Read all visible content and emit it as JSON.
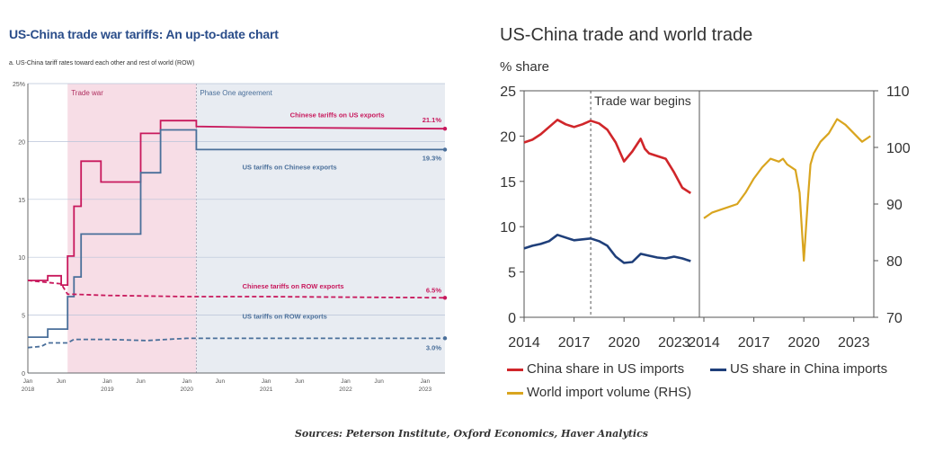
{
  "left": {
    "title": "US-China trade war tariffs: An up-to-date chart",
    "subtitle": "a. US-China tariff rates toward each other and rest of world (ROW)"
  },
  "right": {
    "title": "US-China trade and world trade",
    "ylabel": "% share"
  },
  "source": "Sources: Peterson Institute, Oxford Economics, Haver Analytics",
  "colors": {
    "crimson": "#c8185c",
    "steel": "#4a6f9a",
    "tradewar_band": "#f7dde6",
    "phaseone_band": "#e8ecf2",
    "red": "#d0262a",
    "navy": "#1f3f7a",
    "gold": "#d9a51f"
  },
  "chart_data": [
    {
      "type": "line",
      "title": "US-China trade war tariffs: An up-to-date chart",
      "subtitle": "a. US-China tariff rates toward each other and rest of world (ROW)",
      "ylim": [
        0,
        25
      ],
      "xlim": [
        2018.0,
        2023.25
      ],
      "yticks": [
        "0",
        "5",
        "10",
        "15",
        "20",
        "25%"
      ],
      "xticks": [
        {
          "x": 2018.0,
          "label": "Jan",
          "year": "2018"
        },
        {
          "x": 2018.42,
          "label": "Jun",
          "year": ""
        },
        {
          "x": 2019.0,
          "label": "Jan",
          "year": "2019"
        },
        {
          "x": 2019.42,
          "label": "Jun",
          "year": ""
        },
        {
          "x": 2020.0,
          "label": "Jan",
          "year": "2020"
        },
        {
          "x": 2020.42,
          "label": "Jun",
          "year": ""
        },
        {
          "x": 2021.0,
          "label": "Jan",
          "year": "2021"
        },
        {
          "x": 2021.42,
          "label": "Jun",
          "year": ""
        },
        {
          "x": 2022.0,
          "label": "Jan",
          "year": "2022"
        },
        {
          "x": 2022.42,
          "label": "Jun",
          "year": ""
        },
        {
          "x": 2023.0,
          "label": "Jan",
          "year": "2023"
        }
      ],
      "bands": [
        {
          "label": "Trade war",
          "from": 2018.5,
          "to": 2020.12
        },
        {
          "label": "Phase One agreement",
          "from": 2020.12,
          "to": 2023.25
        }
      ],
      "series": [
        {
          "name": "Chinese tariffs on US exports",
          "end_label": "21.1%",
          "style": "solid",
          "color": "#c8185c",
          "x": [
            2018.0,
            2018.25,
            2018.25,
            2018.42,
            2018.42,
            2018.5,
            2018.5,
            2018.58,
            2018.58,
            2018.67,
            2018.67,
            2018.92,
            2018.92,
            2019.42,
            2019.42,
            2019.67,
            2019.67,
            2020.12,
            2020.12,
            2021.0,
            2023.25
          ],
          "y": [
            8.0,
            8.0,
            8.4,
            8.4,
            7.6,
            7.6,
            10.1,
            10.1,
            14.4,
            14.4,
            18.3,
            18.3,
            16.5,
            16.5,
            20.7,
            20.7,
            21.8,
            21.8,
            21.3,
            21.2,
            21.1
          ]
        },
        {
          "name": "US tariffs on Chinese exports",
          "end_label": "19.3%",
          "style": "solid",
          "color": "#4a6f9a",
          "x": [
            2018.0,
            2018.25,
            2018.25,
            2018.5,
            2018.5,
            2018.58,
            2018.58,
            2018.67,
            2018.67,
            2019.42,
            2019.42,
            2019.67,
            2019.67,
            2020.12,
            2020.12,
            2023.25
          ],
          "y": [
            3.1,
            3.1,
            3.8,
            3.8,
            6.6,
            6.6,
            8.3,
            8.3,
            12.0,
            12.0,
            17.3,
            17.3,
            21.0,
            21.0,
            19.3,
            19.3
          ]
        },
        {
          "name": "Chinese tariffs on ROW exports",
          "end_label": "6.5%",
          "style": "dashed",
          "color": "#c8185c",
          "x": [
            2018.0,
            2018.42,
            2018.5,
            2018.58,
            2019.0,
            2020.0,
            2021.0,
            2022.0,
            2023.25
          ],
          "y": [
            8.0,
            7.7,
            6.8,
            6.8,
            6.7,
            6.6,
            6.6,
            6.55,
            6.5
          ]
        },
        {
          "name": "US tariffs on ROW exports",
          "end_label": "3.0%",
          "style": "dashed",
          "color": "#4a6f9a",
          "x": [
            2018.0,
            2018.17,
            2018.25,
            2018.5,
            2018.58,
            2019.0,
            2019.5,
            2019.75,
            2020.0,
            2021.0,
            2022.0,
            2023.25
          ],
          "y": [
            2.2,
            2.3,
            2.6,
            2.6,
            2.9,
            2.9,
            2.8,
            2.9,
            3.0,
            3.0,
            3.0,
            3.0
          ]
        }
      ]
    },
    {
      "type": "line",
      "title": "US-China trade and world trade",
      "ylabel": "% share",
      "ylim": [
        0,
        25
      ],
      "xlim": [
        2014,
        2024.2
      ],
      "xticks": [
        "2014",
        "2017",
        "2020",
        "2023"
      ],
      "annotation": {
        "x": 2018.0,
        "label": "Trade war begins"
      },
      "series": [
        {
          "name": "China share in US imports",
          "color": "#d0262a",
          "x": [
            2014.0,
            2014.5,
            2015.0,
            2015.5,
            2016.0,
            2016.5,
            2017.0,
            2017.5,
            2018.0,
            2018.5,
            2019.0,
            2019.5,
            2020.0,
            2020.5,
            2021.0,
            2021.25,
            2021.5,
            2022.0,
            2022.5,
            2023.0,
            2023.5,
            2024.0
          ],
          "y": [
            19.3,
            19.6,
            20.2,
            21.0,
            21.8,
            21.3,
            21.0,
            21.3,
            21.7,
            21.4,
            20.7,
            19.3,
            17.2,
            18.3,
            19.7,
            18.6,
            18.1,
            17.8,
            17.5,
            16.0,
            14.3,
            13.7
          ]
        },
        {
          "name": "US share in China imports",
          "color": "#1f3f7a",
          "x": [
            2014.0,
            2014.5,
            2015.0,
            2015.5,
            2016.0,
            2016.5,
            2017.0,
            2017.5,
            2018.0,
            2018.5,
            2019.0,
            2019.5,
            2020.0,
            2020.5,
            2021.0,
            2021.5,
            2022.0,
            2022.5,
            2023.0,
            2023.5,
            2024.0
          ],
          "y": [
            7.6,
            7.9,
            8.1,
            8.4,
            9.1,
            8.8,
            8.5,
            8.6,
            8.7,
            8.4,
            7.9,
            6.7,
            6.0,
            6.1,
            7.0,
            6.8,
            6.6,
            6.5,
            6.7,
            6.5,
            6.2
          ]
        }
      ]
    },
    {
      "type": "line",
      "title": "",
      "ylim": [
        70,
        110
      ],
      "yticks": [
        "70",
        "80",
        "90",
        "100",
        "110"
      ],
      "xlim": [
        2014,
        2024.2
      ],
      "xticks": [
        "2014",
        "2017",
        "2020",
        "2023"
      ],
      "series": [
        {
          "name": "World import volume (RHS)",
          "color": "#d9a51f",
          "x": [
            2014.0,
            2014.5,
            2015.0,
            2015.5,
            2016.0,
            2016.5,
            2017.0,
            2017.5,
            2018.0,
            2018.5,
            2018.75,
            2019.0,
            2019.5,
            2019.75,
            2020.0,
            2020.25,
            2020.4,
            2020.6,
            2021.0,
            2021.5,
            2022.0,
            2022.5,
            2023.0,
            2023.5,
            2024.0
          ],
          "y": [
            87.5,
            88.5,
            89.0,
            89.5,
            90.0,
            92.0,
            94.5,
            96.5,
            98.0,
            97.5,
            98.0,
            97.0,
            96.0,
            92.0,
            80.0,
            91.0,
            97.0,
            99.0,
            101.0,
            102.5,
            105.0,
            104.0,
            102.5,
            101.0,
            102.0
          ]
        }
      ]
    }
  ]
}
